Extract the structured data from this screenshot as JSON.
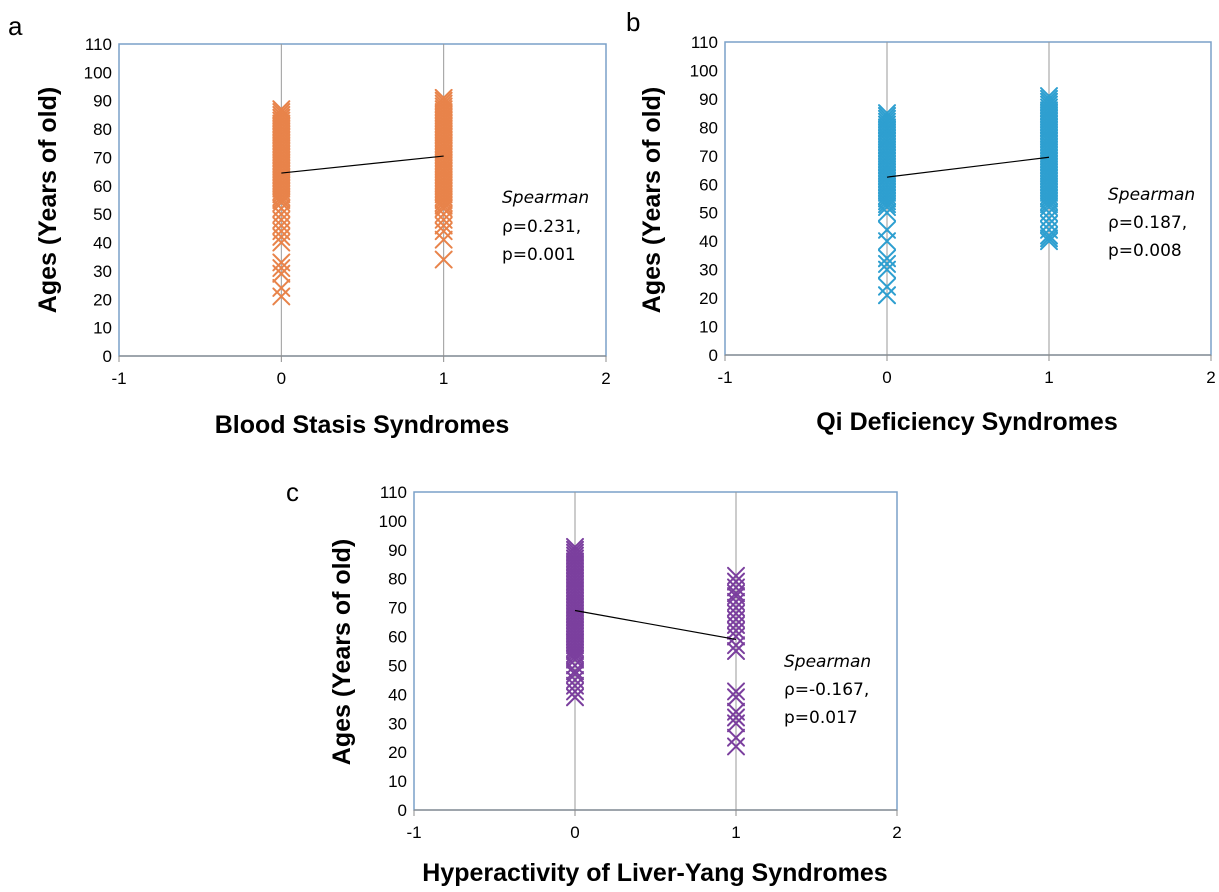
{
  "chart_data": [
    {
      "type": "scatter",
      "panel_label": "a",
      "xlabel": "Blood Stasis Syndromes",
      "ylabel": "Ages (Years of old)",
      "xlim": [
        -1,
        2
      ],
      "ylim": [
        0,
        110
      ],
      "x_ticks": [
        "-1",
        "0",
        "1",
        "2"
      ],
      "y_ticks": [
        "0",
        "10",
        "20",
        "30",
        "40",
        "50",
        "60",
        "70",
        "80",
        "90",
        "100",
        "110"
      ],
      "marker": "x",
      "color": "#e8834a",
      "groups": [
        {
          "x": 0,
          "values": [
            21,
            24,
            29,
            31,
            33,
            40,
            42,
            44,
            46,
            48,
            50,
            52,
            54,
            55,
            56,
            57,
            58,
            59,
            60,
            61,
            62,
            63,
            64,
            65,
            66,
            67,
            68,
            69,
            70,
            71,
            72,
            73,
            74,
            75,
            76,
            77,
            78,
            79,
            80,
            81,
            82,
            83,
            84,
            85,
            86,
            87
          ]
        },
        {
          "x": 1,
          "values": [
            34,
            41,
            44,
            46,
            48,
            50,
            52,
            53,
            54,
            55,
            56,
            57,
            58,
            59,
            60,
            61,
            62,
            63,
            64,
            65,
            66,
            67,
            68,
            69,
            70,
            71,
            72,
            73,
            74,
            75,
            76,
            77,
            78,
            79,
            80,
            81,
            82,
            83,
            84,
            85,
            86,
            87,
            88,
            89,
            90,
            91
          ]
        }
      ],
      "trend_line": {
        "x": [
          0,
          1
        ],
        "y": [
          64.5,
          70.5
        ]
      },
      "annotation": {
        "title": "Spearman",
        "lines": [
          "ρ=0.231,",
          "p=0.001"
        ]
      }
    },
    {
      "type": "scatter",
      "panel_label": "b",
      "xlabel": "Qi Deficiency Syndromes",
      "ylabel": "Ages (Years of old)",
      "xlim": [
        -1,
        2
      ],
      "ylim": [
        0,
        110
      ],
      "x_ticks": [
        "-1",
        "0",
        "1",
        "2"
      ],
      "y_ticks": [
        "0",
        "10",
        "20",
        "30",
        "40",
        "50",
        "60",
        "70",
        "80",
        "90",
        "100",
        "110"
      ],
      "marker": "x",
      "color": "#2e9fd0",
      "groups": [
        {
          "x": 0,
          "values": [
            21,
            24,
            30,
            32,
            34,
            40,
            44,
            50,
            52,
            53,
            54,
            55,
            56,
            57,
            58,
            59,
            60,
            61,
            62,
            63,
            64,
            65,
            66,
            67,
            68,
            69,
            70,
            71,
            72,
            73,
            74,
            75,
            76,
            77,
            78,
            79,
            80,
            81,
            82,
            83,
            84,
            85
          ]
        },
        {
          "x": 1,
          "values": [
            40,
            41,
            42,
            44,
            46,
            48,
            50,
            52,
            53,
            54,
            55,
            56,
            57,
            58,
            59,
            60,
            61,
            62,
            63,
            64,
            65,
            66,
            67,
            68,
            69,
            70,
            71,
            72,
            73,
            74,
            75,
            76,
            77,
            78,
            79,
            80,
            81,
            82,
            83,
            84,
            85,
            86,
            87,
            88,
            89,
            90,
            91
          ]
        }
      ],
      "trend_line": {
        "x": [
          0,
          1
        ],
        "y": [
          62.5,
          69.5
        ]
      },
      "annotation": {
        "title": "Spearman",
        "lines": [
          "ρ=0.187,",
          "p=0.008"
        ]
      }
    },
    {
      "type": "scatter",
      "panel_label": "c",
      "xlabel": "Hyperactivity of Liver-Yang Syndromes",
      "ylabel": "Ages (Years of old)",
      "xlim": [
        -1,
        2
      ],
      "ylim": [
        0,
        110
      ],
      "x_ticks": [
        "-1",
        "0",
        "1",
        "2"
      ],
      "y_ticks": [
        "0",
        "10",
        "20",
        "30",
        "40",
        "50",
        "60",
        "70",
        "80",
        "90",
        "100",
        "110"
      ],
      "marker": "x",
      "color": "#7b3f9e",
      "groups": [
        {
          "x": 0,
          "values": [
            39,
            41,
            43,
            45,
            47,
            48,
            50,
            52,
            53,
            54,
            55,
            56,
            57,
            58,
            59,
            60,
            61,
            62,
            63,
            64,
            65,
            66,
            67,
            68,
            69,
            70,
            71,
            72,
            73,
            74,
            75,
            76,
            77,
            78,
            79,
            80,
            81,
            82,
            83,
            84,
            85,
            86,
            87,
            88,
            89,
            90,
            91
          ]
        },
        {
          "x": 1,
          "values": [
            22,
            25,
            30,
            32,
            34,
            39,
            41,
            55,
            57,
            60,
            62,
            64,
            66,
            68,
            70,
            72,
            74,
            75,
            77,
            79,
            81
          ]
        }
      ],
      "trend_line": {
        "x": [
          0,
          1
        ],
        "y": [
          69.0,
          59.0
        ]
      },
      "annotation": {
        "title": "Spearman",
        "lines": [
          "ρ=-0.167,",
          "p=0.017"
        ]
      }
    }
  ]
}
